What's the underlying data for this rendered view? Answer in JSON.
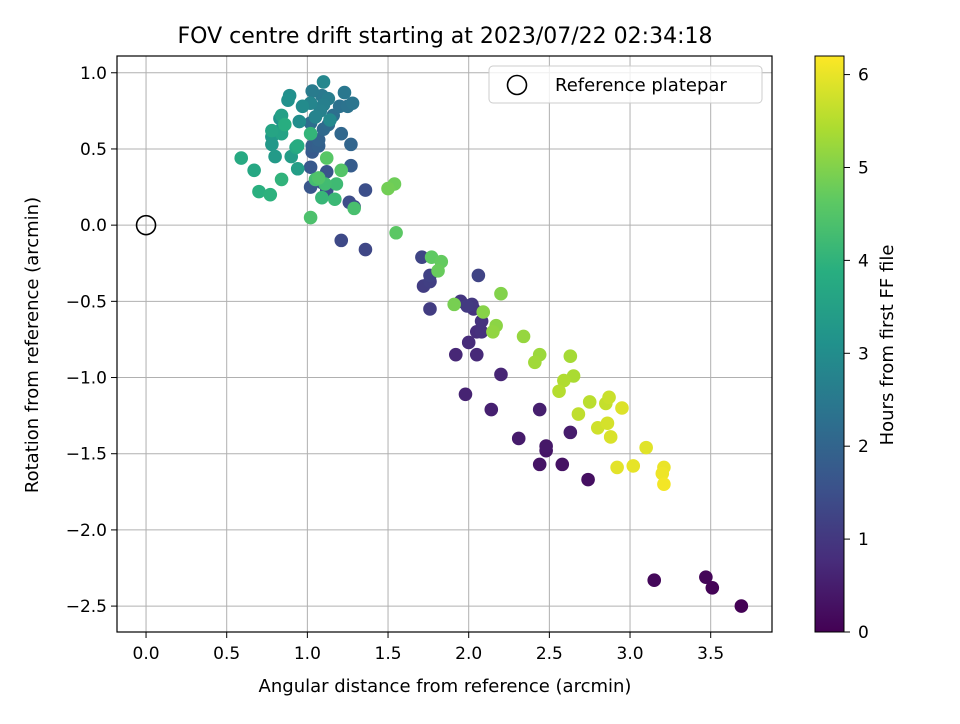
{
  "chart_data": {
    "type": "scatter",
    "title": "FOV centre drift starting at 2023/07/22 02:34:18",
    "xlabel": "Angular distance from reference (arcmin)",
    "ylabel": "Rotation from reference (arcmin)",
    "xlim": [
      -0.18,
      3.88
    ],
    "ylim": [
      -2.67,
      1.11
    ],
    "xticks": [
      0.0,
      0.5,
      1.0,
      1.5,
      2.0,
      2.5,
      3.0,
      3.5
    ],
    "xtick_labels": [
      "0.0",
      "0.5",
      "1.0",
      "1.5",
      "2.0",
      "2.5",
      "3.0",
      "3.5"
    ],
    "yticks": [
      1.0,
      0.5,
      0.0,
      -0.5,
      -1.0,
      -1.5,
      -2.0,
      -2.5
    ],
    "ytick_labels": [
      "1.0",
      "0.5",
      "0.0",
      "−0.5",
      "−1.0",
      "−1.5",
      "−2.0",
      "−2.5"
    ],
    "grid": true,
    "legend": {
      "placement": "top-right",
      "entries": [
        "Reference platepar"
      ]
    },
    "reference_point": {
      "x": 0.0,
      "y": 0.0
    },
    "colorbar": {
      "label": "Hours from first FF file",
      "range": [
        0,
        6.2
      ],
      "ticks": [
        0,
        1,
        2,
        3,
        4,
        5,
        6
      ],
      "tick_labels": [
        "0",
        "1",
        "2",
        "3",
        "4",
        "5",
        "6"
      ],
      "colormap": "viridis"
    },
    "points": [
      {
        "x": 3.69,
        "y": -2.5,
        "c": 0.02
      },
      {
        "x": 3.51,
        "y": -2.38,
        "c": 0.05
      },
      {
        "x": 3.47,
        "y": -2.31,
        "c": 0.08
      },
      {
        "x": 3.15,
        "y": -2.33,
        "c": 0.12
      },
      {
        "x": 2.74,
        "y": -1.67,
        "c": 0.25
      },
      {
        "x": 2.58,
        "y": -1.57,
        "c": 0.3
      },
      {
        "x": 2.44,
        "y": -1.57,
        "c": 0.33
      },
      {
        "x": 2.48,
        "y": -1.48,
        "c": 0.36
      },
      {
        "x": 2.48,
        "y": -1.45,
        "c": 0.4
      },
      {
        "x": 2.31,
        "y": -1.4,
        "c": 0.45
      },
      {
        "x": 2.63,
        "y": -1.36,
        "c": 0.48
      },
      {
        "x": 2.44,
        "y": -1.21,
        "c": 0.52
      },
      {
        "x": 2.14,
        "y": -1.21,
        "c": 0.55
      },
      {
        "x": 1.98,
        "y": -1.11,
        "c": 0.6
      },
      {
        "x": 2.2,
        "y": -0.98,
        "c": 0.65
      },
      {
        "x": 1.92,
        "y": -0.85,
        "c": 0.68
      },
      {
        "x": 2.05,
        "y": -0.85,
        "c": 0.72
      },
      {
        "x": 2.0,
        "y": -0.77,
        "c": 0.76
      },
      {
        "x": 2.05,
        "y": -0.7,
        "c": 0.8
      },
      {
        "x": 2.08,
        "y": -0.7,
        "c": 0.85
      },
      {
        "x": 2.08,
        "y": -0.63,
        "c": 0.88
      },
      {
        "x": 2.03,
        "y": -0.55,
        "c": 0.92
      },
      {
        "x": 1.95,
        "y": -0.5,
        "c": 0.96
      },
      {
        "x": 2.02,
        "y": -0.52,
        "c": 1.0
      },
      {
        "x": 1.99,
        "y": -0.53,
        "c": 1.05
      },
      {
        "x": 1.76,
        "y": -0.55,
        "c": 1.08
      },
      {
        "x": 1.72,
        "y": -0.4,
        "c": 1.12
      },
      {
        "x": 1.76,
        "y": -0.37,
        "c": 1.16
      },
      {
        "x": 1.76,
        "y": -0.33,
        "c": 1.2
      },
      {
        "x": 2.06,
        "y": -0.33,
        "c": 1.25
      },
      {
        "x": 1.71,
        "y": -0.21,
        "c": 1.28
      },
      {
        "x": 1.36,
        "y": -0.16,
        "c": 1.32
      },
      {
        "x": 1.21,
        "y": -0.1,
        "c": 1.36
      },
      {
        "x": 1.29,
        "y": 0.12,
        "c": 1.4
      },
      {
        "x": 1.26,
        "y": 0.15,
        "c": 1.45
      },
      {
        "x": 1.36,
        "y": 0.23,
        "c": 1.48
      },
      {
        "x": 1.12,
        "y": 0.23,
        "c": 1.52
      },
      {
        "x": 1.09,
        "y": 0.28,
        "c": 1.56
      },
      {
        "x": 1.12,
        "y": 0.35,
        "c": 1.6
      },
      {
        "x": 1.02,
        "y": 0.25,
        "c": 1.65
      },
      {
        "x": 1.02,
        "y": 0.38,
        "c": 1.7
      },
      {
        "x": 1.03,
        "y": 0.48,
        "c": 1.75
      },
      {
        "x": 1.27,
        "y": 0.39,
        "c": 1.8
      },
      {
        "x": 1.03,
        "y": 0.52,
        "c": 1.85
      },
      {
        "x": 1.07,
        "y": 0.52,
        "c": 1.9
      },
      {
        "x": 1.07,
        "y": 0.56,
        "c": 1.95
      },
      {
        "x": 1.27,
        "y": 0.53,
        "c": 2.0
      },
      {
        "x": 1.21,
        "y": 0.6,
        "c": 2.05
      },
      {
        "x": 1.1,
        "y": 0.63,
        "c": 2.1
      },
      {
        "x": 1.13,
        "y": 0.66,
        "c": 2.15
      },
      {
        "x": 1.02,
        "y": 0.67,
        "c": 2.2
      },
      {
        "x": 1.16,
        "y": 0.72,
        "c": 2.25
      },
      {
        "x": 1.2,
        "y": 0.78,
        "c": 2.3
      },
      {
        "x": 1.25,
        "y": 0.78,
        "c": 2.35
      },
      {
        "x": 1.28,
        "y": 0.8,
        "c": 2.4
      },
      {
        "x": 1.23,
        "y": 0.87,
        "c": 2.45
      },
      {
        "x": 1.09,
        "y": 0.85,
        "c": 2.5
      },
      {
        "x": 1.03,
        "y": 0.88,
        "c": 2.55
      },
      {
        "x": 1.13,
        "y": 0.83,
        "c": 2.6
      },
      {
        "x": 1.1,
        "y": 0.79,
        "c": 2.65
      },
      {
        "x": 1.08,
        "y": 0.75,
        "c": 2.7
      },
      {
        "x": 1.05,
        "y": 0.71,
        "c": 2.75
      },
      {
        "x": 1.02,
        "y": 0.8,
        "c": 2.8
      },
      {
        "x": 1.1,
        "y": 0.94,
        "c": 2.85
      },
      {
        "x": 1.14,
        "y": 0.69,
        "c": 2.9
      },
      {
        "x": 0.97,
        "y": 0.78,
        "c": 2.95
      },
      {
        "x": 0.95,
        "y": 0.68,
        "c": 3.0
      },
      {
        "x": 0.89,
        "y": 0.85,
        "c": 3.05
      },
      {
        "x": 0.88,
        "y": 0.82,
        "c": 3.1
      },
      {
        "x": 0.83,
        "y": 0.7,
        "c": 3.15
      },
      {
        "x": 0.84,
        "y": 0.63,
        "c": 3.2
      },
      {
        "x": 0.78,
        "y": 0.58,
        "c": 3.25
      },
      {
        "x": 0.78,
        "y": 0.53,
        "c": 3.3
      },
      {
        "x": 0.8,
        "y": 0.45,
        "c": 3.35
      },
      {
        "x": 0.9,
        "y": 0.45,
        "c": 3.4
      },
      {
        "x": 0.94,
        "y": 0.37,
        "c": 3.45
      },
      {
        "x": 0.84,
        "y": 0.72,
        "c": 3.5
      },
      {
        "x": 0.84,
        "y": 0.6,
        "c": 3.55
      },
      {
        "x": 0.78,
        "y": 0.62,
        "c": 3.6
      },
      {
        "x": 0.93,
        "y": 0.51,
        "c": 3.65
      },
      {
        "x": 0.67,
        "y": 0.36,
        "c": 3.7
      },
      {
        "x": 0.59,
        "y": 0.44,
        "c": 3.75
      },
      {
        "x": 0.94,
        "y": 0.52,
        "c": 3.8
      },
      {
        "x": 0.86,
        "y": 0.66,
        "c": 3.85
      },
      {
        "x": 0.7,
        "y": 0.22,
        "c": 3.9
      },
      {
        "x": 0.77,
        "y": 0.2,
        "c": 3.95
      },
      {
        "x": 0.84,
        "y": 0.3,
        "c": 4.0
      },
      {
        "x": 1.02,
        "y": 0.6,
        "c": 4.05
      },
      {
        "x": 1.09,
        "y": 0.18,
        "c": 4.1
      },
      {
        "x": 1.17,
        "y": 0.17,
        "c": 4.15
      },
      {
        "x": 1.18,
        "y": 0.27,
        "c": 4.2
      },
      {
        "x": 1.11,
        "y": 0.27,
        "c": 4.25
      },
      {
        "x": 1.05,
        "y": 0.3,
        "c": 4.3
      },
      {
        "x": 1.29,
        "y": 0.11,
        "c": 4.35
      },
      {
        "x": 1.02,
        "y": 0.05,
        "c": 4.4
      },
      {
        "x": 1.07,
        "y": 0.31,
        "c": 4.45
      },
      {
        "x": 1.21,
        "y": 0.36,
        "c": 4.5
      },
      {
        "x": 1.12,
        "y": 0.44,
        "c": 4.55
      },
      {
        "x": 1.55,
        "y": -0.05,
        "c": 4.6
      },
      {
        "x": 1.77,
        "y": -0.21,
        "c": 4.65
      },
      {
        "x": 1.83,
        "y": -0.24,
        "c": 4.7
      },
      {
        "x": 1.81,
        "y": -0.3,
        "c": 4.75
      },
      {
        "x": 1.54,
        "y": 0.27,
        "c": 4.8
      },
      {
        "x": 1.5,
        "y": 0.24,
        "c": 4.85
      },
      {
        "x": 1.91,
        "y": -0.52,
        "c": 4.9
      },
      {
        "x": 2.2,
        "y": -0.45,
        "c": 5.0
      },
      {
        "x": 2.09,
        "y": -0.57,
        "c": 5.05
      },
      {
        "x": 2.17,
        "y": -0.66,
        "c": 5.1
      },
      {
        "x": 2.15,
        "y": -0.7,
        "c": 5.15
      },
      {
        "x": 2.34,
        "y": -0.73,
        "c": 5.2
      },
      {
        "x": 2.44,
        "y": -0.85,
        "c": 5.25
      },
      {
        "x": 2.41,
        "y": -0.9,
        "c": 5.3
      },
      {
        "x": 2.63,
        "y": -0.86,
        "c": 5.35
      },
      {
        "x": 2.65,
        "y": -0.99,
        "c": 5.4
      },
      {
        "x": 2.59,
        "y": -1.02,
        "c": 5.45
      },
      {
        "x": 2.56,
        "y": -1.09,
        "c": 5.5
      },
      {
        "x": 2.75,
        "y": -1.16,
        "c": 5.55
      },
      {
        "x": 2.68,
        "y": -1.24,
        "c": 5.6
      },
      {
        "x": 2.85,
        "y": -1.17,
        "c": 5.65
      },
      {
        "x": 2.87,
        "y": -1.13,
        "c": 5.7
      },
      {
        "x": 2.8,
        "y": -1.33,
        "c": 5.75
      },
      {
        "x": 2.86,
        "y": -1.3,
        "c": 5.8
      },
      {
        "x": 2.88,
        "y": -1.39,
        "c": 5.85
      },
      {
        "x": 2.95,
        "y": -1.2,
        "c": 5.88
      },
      {
        "x": 3.1,
        "y": -1.46,
        "c": 5.92
      },
      {
        "x": 2.92,
        "y": -1.59,
        "c": 5.95
      },
      {
        "x": 3.02,
        "y": -1.58,
        "c": 5.98
      },
      {
        "x": 3.21,
        "y": -1.59,
        "c": 6.02
      },
      {
        "x": 3.2,
        "y": -1.63,
        "c": 6.05
      },
      {
        "x": 3.21,
        "y": -1.7,
        "c": 6.1
      }
    ]
  }
}
